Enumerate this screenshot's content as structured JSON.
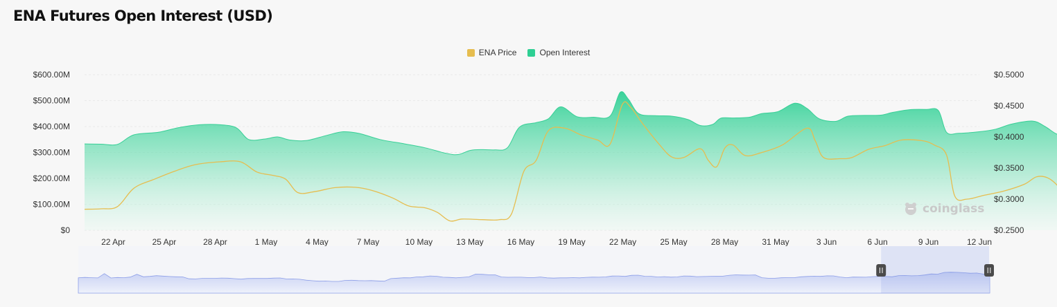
{
  "page": {
    "title": "ENA Futures Open Interest (USD)"
  },
  "legend": [
    {
      "label": "ENA Price",
      "color": "#e6bd4f"
    },
    {
      "label": "Open Interest",
      "color": "#2ecf93"
    }
  ],
  "brand": {
    "name": "coinglass",
    "icon": "coinglass-logo-icon"
  },
  "chart_data": {
    "type": "area",
    "title": "ENA Futures Open Interest (USD)",
    "x_tick_labels": [
      "22 Apr",
      "25 Apr",
      "28 Apr",
      "1 May",
      "4 May",
      "7 May",
      "10 May",
      "13 May",
      "16 May",
      "19 May",
      "22 May",
      "25 May",
      "28 May",
      "31 May",
      "3 Jun",
      "6 Jun",
      "9 Jun",
      "12 Jun"
    ],
    "x_range_days_from_first_tick": [
      -0.7,
      21.1
    ],
    "y_left": {
      "ticks": [
        "$0",
        "$100.00M",
        "$200.00M",
        "$300.00M",
        "$400.00M",
        "$500.00M",
        "$600.00M"
      ],
      "range": [
        0,
        600
      ],
      "unit": "M USD"
    },
    "y_right": {
      "ticks": [
        "$0.2500",
        "$0.3000",
        "$0.3500",
        "$0.4000",
        "$0.4500",
        "$0.5000"
      ],
      "range": [
        0.25,
        0.5
      ]
    },
    "grid": true,
    "legend_position": "top-center",
    "series": [
      {
        "name": "Open Interest",
        "axis": "left",
        "color": "#2ecf93",
        "points": [
          [
            -0.7,
            333
          ],
          [
            -0.3,
            332
          ],
          [
            0.1,
            331
          ],
          [
            0.5,
            368
          ],
          [
            1.1,
            378
          ],
          [
            1.6,
            396
          ],
          [
            2.1,
            407
          ],
          [
            2.6,
            407
          ],
          [
            3.0,
            395
          ],
          [
            3.3,
            350
          ],
          [
            3.7,
            352
          ],
          [
            4.0,
            360
          ],
          [
            4.3,
            348
          ],
          [
            4.7,
            346
          ],
          [
            5.2,
            366
          ],
          [
            5.6,
            380
          ],
          [
            6.0,
            373
          ],
          [
            6.5,
            350
          ],
          [
            7.1,
            333
          ],
          [
            7.6,
            318
          ],
          [
            8.1,
            297
          ],
          [
            8.4,
            292
          ],
          [
            8.7,
            308
          ],
          [
            9.0,
            311
          ],
          [
            9.3,
            310
          ],
          [
            9.6,
            318
          ],
          [
            9.9,
            398
          ],
          [
            10.3,
            415
          ],
          [
            10.6,
            430
          ],
          [
            10.9,
            476
          ],
          [
            11.3,
            438
          ],
          [
            11.7,
            436
          ],
          [
            12.1,
            440
          ],
          [
            12.35,
            532
          ],
          [
            12.55,
            505
          ],
          [
            12.8,
            450
          ],
          [
            13.2,
            442
          ],
          [
            13.6,
            440
          ],
          [
            14.0,
            427
          ],
          [
            14.3,
            404
          ],
          [
            14.6,
            408
          ],
          [
            14.8,
            432
          ],
          [
            15.1,
            433
          ],
          [
            15.5,
            436
          ],
          [
            15.8,
            450
          ],
          [
            16.2,
            458
          ],
          [
            16.6,
            490
          ],
          [
            16.9,
            470
          ],
          [
            17.2,
            430
          ],
          [
            17.6,
            420
          ],
          [
            17.9,
            440
          ],
          [
            18.3,
            443
          ],
          [
            18.7,
            444
          ],
          [
            19.0,
            455
          ],
          [
            19.4,
            465
          ],
          [
            19.8,
            466
          ],
          [
            20.1,
            462
          ],
          [
            20.3,
            378
          ],
          [
            20.6,
            374
          ],
          [
            21.1,
            380
          ],
          [
            21.5,
            390
          ],
          [
            21.9,
            410
          ],
          [
            22.4,
            421
          ],
          [
            22.7,
            400
          ],
          [
            23.0,
            370
          ],
          [
            23.3,
            366
          ],
          [
            23.7,
            370
          ],
          [
            24.0,
            380
          ],
          [
            24.2,
            412
          ],
          [
            24.5,
            413
          ],
          [
            24.9,
            410
          ],
          [
            25.2,
            440
          ],
          [
            25.6,
            490
          ],
          [
            25.9,
            500
          ],
          [
            26.2,
            470
          ],
          [
            26.6,
            440
          ],
          [
            26.9,
            405
          ]
        ]
      },
      {
        "name": "ENA Price",
        "axis": "right",
        "color": "#e6bd4f",
        "points": [
          [
            -0.7,
            0.2838
          ],
          [
            -0.3,
            0.2845
          ],
          [
            0.1,
            0.288
          ],
          [
            0.5,
            0.3175
          ],
          [
            1.0,
            0.332
          ],
          [
            1.5,
            0.345
          ],
          [
            2.0,
            0.3555
          ],
          [
            2.6,
            0.36
          ],
          [
            3.1,
            0.36
          ],
          [
            3.5,
            0.3435
          ],
          [
            3.9,
            0.338
          ],
          [
            4.2,
            0.332
          ],
          [
            4.5,
            0.3105
          ],
          [
            4.9,
            0.312
          ],
          [
            5.4,
            0.3185
          ],
          [
            5.9,
            0.319
          ],
          [
            6.3,
            0.314
          ],
          [
            6.8,
            0.302
          ],
          [
            7.2,
            0.289
          ],
          [
            7.6,
            0.286
          ],
          [
            7.9,
            0.2785
          ],
          [
            8.2,
            0.265
          ],
          [
            8.5,
            0.268
          ],
          [
            9.0,
            0.267
          ],
          [
            9.4,
            0.267
          ],
          [
            9.7,
            0.276
          ],
          [
            10.0,
            0.3445
          ],
          [
            10.3,
            0.362
          ],
          [
            10.6,
            0.41
          ],
          [
            11.0,
            0.414
          ],
          [
            11.4,
            0.403
          ],
          [
            11.8,
            0.395
          ],
          [
            12.1,
            0.388
          ],
          [
            12.4,
            0.452
          ],
          [
            12.6,
            0.448
          ],
          [
            12.9,
            0.421
          ],
          [
            13.3,
            0.388
          ],
          [
            13.6,
            0.368
          ],
          [
            13.9,
            0.367
          ],
          [
            14.3,
            0.381
          ],
          [
            14.5,
            0.362
          ],
          [
            14.7,
            0.352
          ],
          [
            14.9,
            0.382
          ],
          [
            15.1,
            0.387
          ],
          [
            15.4,
            0.37
          ],
          [
            15.8,
            0.375
          ],
          [
            16.3,
            0.387
          ],
          [
            16.9,
            0.414
          ],
          [
            17.1,
            0.394
          ],
          [
            17.3,
            0.367
          ],
          [
            17.7,
            0.365
          ],
          [
            18.0,
            0.367
          ],
          [
            18.4,
            0.38
          ],
          [
            18.8,
            0.386
          ],
          [
            19.2,
            0.395
          ],
          [
            19.7,
            0.394
          ],
          [
            20.0,
            0.387
          ],
          [
            20.3,
            0.371
          ],
          [
            20.5,
            0.305
          ],
          [
            20.8,
            0.3
          ],
          [
            21.2,
            0.306
          ],
          [
            21.7,
            0.313
          ],
          [
            22.2,
            0.324
          ],
          [
            22.5,
            0.336
          ],
          [
            22.8,
            0.333
          ],
          [
            23.1,
            0.314
          ],
          [
            23.3,
            0.29
          ],
          [
            23.6,
            0.285
          ],
          [
            24.0,
            0.294
          ],
          [
            24.3,
            0.306
          ],
          [
            24.6,
            0.319
          ],
          [
            24.9,
            0.318
          ],
          [
            25.1,
            0.319
          ],
          [
            25.4,
            0.336
          ],
          [
            25.8,
            0.365
          ],
          [
            26.1,
            0.356
          ],
          [
            26.5,
            0.334
          ],
          [
            26.9,
            0.311
          ]
        ]
      }
    ],
    "navigator": {
      "selected_range_fraction": [
        0.88,
        1.0
      ]
    }
  }
}
